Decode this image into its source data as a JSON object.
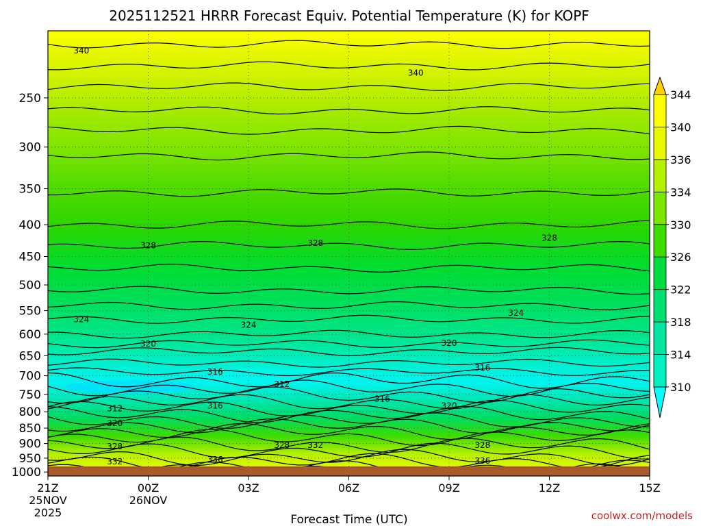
{
  "chart_data": {
    "type": "contour",
    "title": "2025112521 HRRR Forecast Equiv. Potential Temperature (K) for KOPF",
    "xlabel": "Forecast Time (UTC)",
    "ylabel": "",
    "credit": "coolwx.com/models",
    "x": {
      "range_hours": [
        0,
        18
      ],
      "ticks": [
        {
          "hour": 0,
          "label": "21Z",
          "date": "25NOV",
          "year": "2025"
        },
        {
          "hour": 3,
          "label": "00Z",
          "date": "26NOV",
          "year": ""
        },
        {
          "hour": 6,
          "label": "03Z",
          "date": "",
          "year": ""
        },
        {
          "hour": 9,
          "label": "06Z",
          "date": "",
          "year": ""
        },
        {
          "hour": 12,
          "label": "09Z",
          "date": "",
          "year": ""
        },
        {
          "hour": 15,
          "label": "12Z",
          "date": "",
          "year": ""
        },
        {
          "hour": 18,
          "label": "15Z",
          "date": "",
          "year": ""
        }
      ]
    },
    "y": {
      "scale": "log-pressure",
      "range_hpa": [
        1015,
        195
      ],
      "ticks": [
        "250",
        "300",
        "350",
        "400",
        "450",
        "500",
        "550",
        "600",
        "650",
        "700",
        "750",
        "800",
        "850",
        "900",
        "950",
        "1000"
      ]
    },
    "colorbar": {
      "units": "K",
      "levels": [
        310,
        314,
        318,
        322,
        326,
        330,
        334,
        336,
        340,
        344
      ],
      "colors": [
        "#00ffff",
        "#00f0c0",
        "#00e6a0",
        "#00e070",
        "#00dc40",
        "#3cdc00",
        "#7ce600",
        "#b4f000",
        "#e8f800",
        "#ffff00",
        "#ffd000"
      ]
    },
    "contour_labels": [
      {
        "value": "340",
        "hour": 1.0,
        "hpa": 210
      },
      {
        "value": "340",
        "hour": 11.0,
        "hpa": 228
      },
      {
        "value": "328",
        "hour": 3.0,
        "hpa": 432
      },
      {
        "value": "328",
        "hour": 8.0,
        "hpa": 428
      },
      {
        "value": "328",
        "hour": 15.0,
        "hpa": 420
      },
      {
        "value": "324",
        "hour": 1.0,
        "hpa": 568
      },
      {
        "value": "324",
        "hour": 6.0,
        "hpa": 580
      },
      {
        "value": "324",
        "hour": 14.0,
        "hpa": 555
      },
      {
        "value": "320",
        "hour": 3.0,
        "hpa": 622
      },
      {
        "value": "320",
        "hour": 12.0,
        "hpa": 620
      },
      {
        "value": "316",
        "hour": 5.0,
        "hpa": 690
      },
      {
        "value": "316",
        "hour": 13.0,
        "hpa": 680
      },
      {
        "value": "312",
        "hour": 7.0,
        "hpa": 722
      },
      {
        "value": "312",
        "hour": 2.0,
        "hpa": 790
      },
      {
        "value": "316",
        "hour": 5.0,
        "hpa": 783
      },
      {
        "value": "316",
        "hour": 10.0,
        "hpa": 763
      },
      {
        "value": "320",
        "hour": 12.0,
        "hpa": 783
      },
      {
        "value": "320",
        "hour": 2.0,
        "hpa": 835
      },
      {
        "value": "328",
        "hour": 2.0,
        "hpa": 910
      },
      {
        "value": "328",
        "hour": 7.0,
        "hpa": 905
      },
      {
        "value": "332",
        "hour": 8.0,
        "hpa": 905
      },
      {
        "value": "328",
        "hour": 13.0,
        "hpa": 905
      },
      {
        "value": "332",
        "hour": 2.0,
        "hpa": 962
      },
      {
        "value": "336",
        "hour": 5.0,
        "hpa": 955
      },
      {
        "value": "336",
        "hour": 13.0,
        "hpa": 960
      }
    ]
  }
}
